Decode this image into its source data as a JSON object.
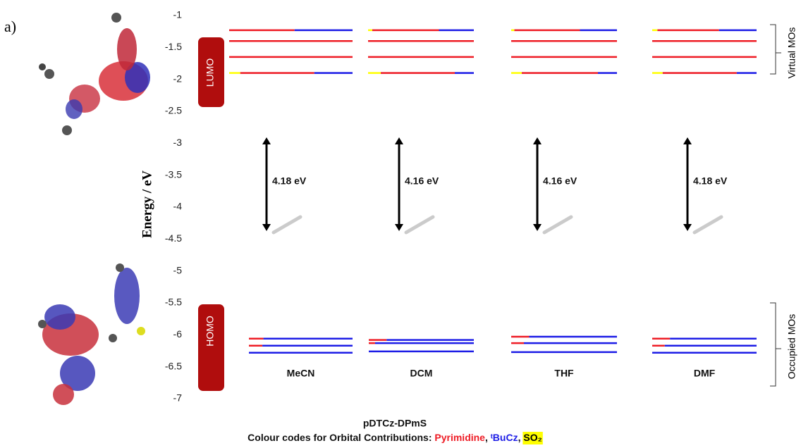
{
  "chart_data": {
    "type": "energy-level",
    "panel_label": "a)",
    "title": "pDTCz-DPmS",
    "ylabel": "Energy / eV",
    "ylim": [
      -1,
      -7
    ],
    "yticks": [
      -1,
      -1.5,
      -2,
      -2.5,
      -3,
      -3.5,
      -4,
      -4.5,
      -5,
      -5.5,
      -6,
      -6.5,
      -7
    ],
    "lumo_label": "LUMO",
    "homo_label": "HOMO",
    "virtual_label": "Virtual MOs",
    "occupied_label": "Occupied MOs",
    "legend_caption": "Colour codes for Orbital Contributions:",
    "legend_separator": ", ",
    "components": [
      {
        "name": "Pyrimidine",
        "color": "#ee1c25"
      },
      {
        "name": "ᵗBuCz",
        "color": "#1c1ce6"
      },
      {
        "name": "SO₂",
        "color": "#ffff00"
      }
    ],
    "series": [
      {
        "name": "MeCN",
        "gap_label": "4.18 eV",
        "virtual": [
          {
            "energy": -1.23,
            "contributions": [
              53,
              47,
              0
            ]
          },
          {
            "energy": -1.4,
            "contributions": [
              100,
              0,
              0
            ]
          },
          {
            "energy": -1.65,
            "contributions": [
              100,
              0,
              0
            ]
          },
          {
            "energy": -1.9,
            "contributions": [
              60,
              31,
              9
            ]
          }
        ],
        "occupied": [
          {
            "energy": -6.06,
            "contributions": [
              14,
              86,
              0
            ]
          },
          {
            "energy": -6.17,
            "contributions": [
              13,
              87,
              0
            ]
          },
          {
            "energy": -6.28,
            "contributions": [
              0,
              100,
              0
            ]
          }
        ]
      },
      {
        "name": "DCM",
        "gap_label": "4.16 eV",
        "virtual": [
          {
            "energy": -1.23,
            "contributions": [
              63,
              33,
              4
            ]
          },
          {
            "energy": -1.4,
            "contributions": [
              100,
              0,
              0
            ]
          },
          {
            "energy": -1.65,
            "contributions": [
              100,
              0,
              0
            ]
          },
          {
            "energy": -1.9,
            "contributions": [
              70,
              18,
              12
            ]
          }
        ],
        "occupied": [
          {
            "energy": -6.08,
            "contributions": [
              17,
              83,
              0
            ]
          },
          {
            "energy": -6.13,
            "contributions": [
              6,
              94,
              0
            ]
          },
          {
            "energy": -6.26,
            "contributions": [
              0,
              100,
              0
            ]
          }
        ]
      },
      {
        "name": "THF",
        "gap_label": "4.16 eV",
        "virtual": [
          {
            "energy": -1.23,
            "contributions": [
              62,
              35,
              3
            ]
          },
          {
            "energy": -1.4,
            "contributions": [
              100,
              0,
              0
            ]
          },
          {
            "energy": -1.65,
            "contributions": [
              100,
              0,
              0
            ]
          },
          {
            "energy": -1.9,
            "contributions": [
              72,
              18,
              10
            ]
          }
        ],
        "occupied": [
          {
            "energy": -6.03,
            "contributions": [
              17,
              83,
              0
            ]
          },
          {
            "energy": -6.13,
            "contributions": [
              12,
              88,
              0
            ]
          },
          {
            "energy": -6.27,
            "contributions": [
              0,
              100,
              0
            ]
          }
        ]
      },
      {
        "name": "DMF",
        "gap_label": "4.18 eV",
        "virtual": [
          {
            "energy": -1.23,
            "contributions": [
              59,
              36,
              5
            ]
          },
          {
            "energy": -1.4,
            "contributions": [
              100,
              0,
              0
            ]
          },
          {
            "energy": -1.65,
            "contributions": [
              100,
              0,
              0
            ]
          },
          {
            "energy": -1.9,
            "contributions": [
              71,
              19,
              10
            ]
          }
        ],
        "occupied": [
          {
            "energy": -6.06,
            "contributions": [
              17,
              83,
              0
            ]
          },
          {
            "energy": -6.17,
            "contributions": [
              12,
              88,
              0
            ]
          },
          {
            "energy": -6.28,
            "contributions": [
              0,
              100,
              0
            ]
          }
        ]
      }
    ]
  }
}
